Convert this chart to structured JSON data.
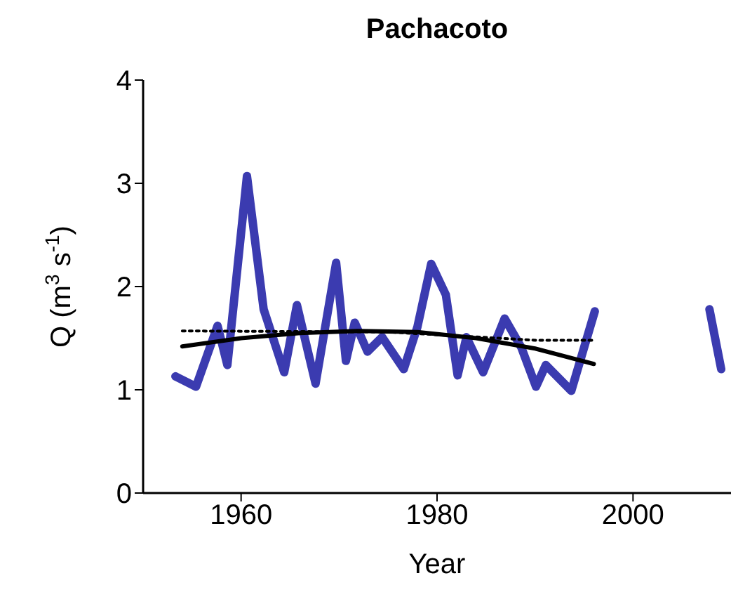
{
  "chart_data": {
    "type": "line",
    "title": "Pachacoto",
    "xlabel": "Year",
    "ylabel": "Q (m$^{3}$ s$^{-1}$)",
    "xlim": [
      1950,
      2010
    ],
    "xticks": [
      1960,
      1980,
      2000
    ],
    "ylim": [
      0,
      4
    ],
    "yticks": [
      0,
      1,
      2,
      3,
      4
    ],
    "series": [
      {
        "color": "#3b3bb0",
        "line_style": "solid",
        "x": [
          1953.3,
          1955.4,
          1957.6,
          1958.6,
          1960.6,
          1962.3,
          1964.4,
          1965.7,
          1967.6,
          1969.7,
          1970.7,
          1971.6,
          1972.9,
          1974.4,
          1976.6,
          1978,
          1979.4,
          1980.9,
          1982.1,
          1983,
          1984.7,
          1986.9,
          1988.6,
          1990.1,
          1991.1,
          1993.7,
          1996.1,
          2002,
          2007.8,
          2009
        ],
        "values": [
          1.13,
          1.03,
          1.62,
          1.24,
          3.07,
          1.78,
          1.17,
          1.82,
          1.06,
          2.23,
          1.28,
          1.65,
          1.37,
          1.51,
          1.2,
          1.61,
          2.22,
          1.92,
          1.14,
          1.51,
          1.17,
          1.69,
          1.41,
          1.03,
          1.24,
          0.99,
          1.76,
          null,
          1.78,
          1.2
        ]
      },
      {
        "color": "#000000",
        "line_style": "dotted",
        "x": [
          1954,
          1975,
          1990,
          1996
        ],
        "values": [
          1.57,
          1.56,
          1.48,
          1.48
        ]
      },
      {
        "color": "#000000",
        "line_style": "solid",
        "x": [
          1954,
          1960,
          1966,
          1972,
          1978,
          1984,
          1990,
          1996
        ],
        "values": [
          1.42,
          1.5,
          1.55,
          1.57,
          1.56,
          1.5,
          1.4,
          1.25
        ]
      }
    ]
  }
}
